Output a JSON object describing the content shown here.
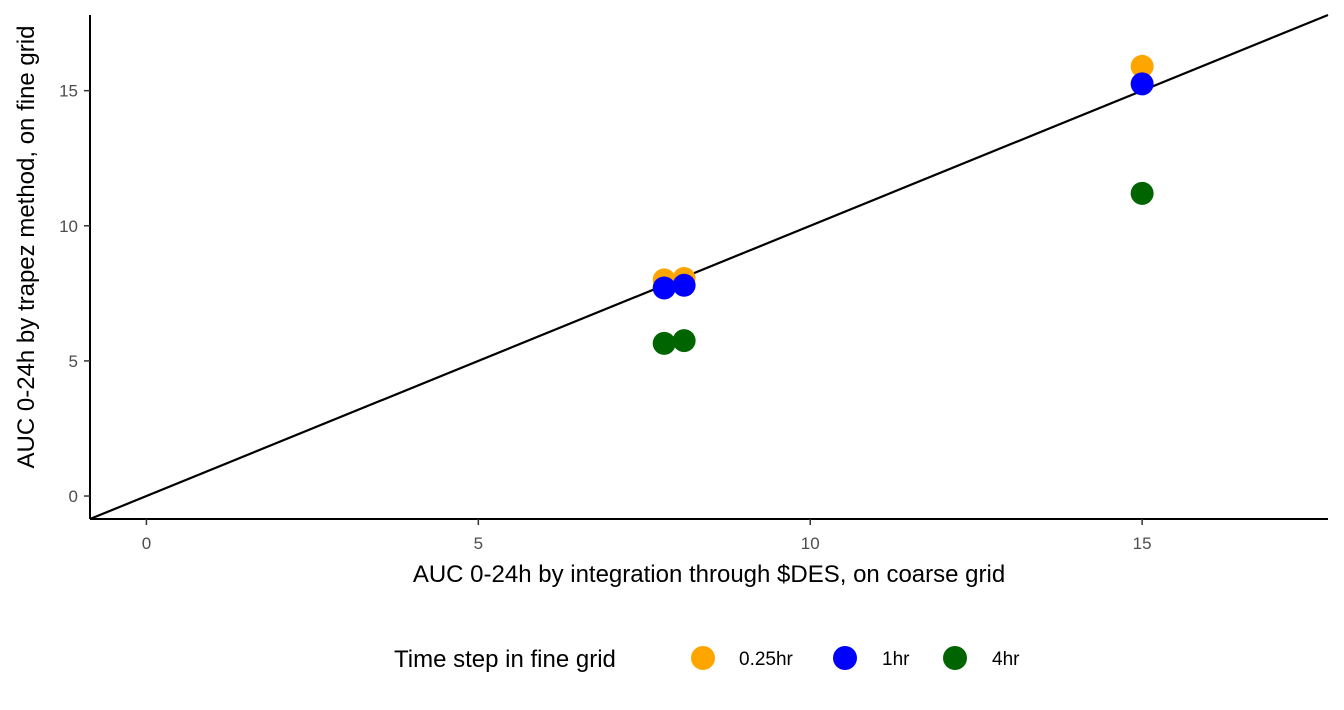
{
  "chart_data": {
    "type": "scatter",
    "xlabel": "AUC 0-24h by integration through $DES, on coarse grid",
    "ylabel": "AUC 0-24h by trapez method, on fine grid",
    "xlim": [
      -0.85,
      17.8
    ],
    "ylim": [
      -0.85,
      17.8
    ],
    "x_ticks": [
      0,
      5,
      10,
      15
    ],
    "y_ticks": [
      0,
      5,
      10,
      15
    ],
    "grid": false,
    "reference_line": {
      "slope": 1,
      "intercept": 0,
      "color": "#000000"
    },
    "legend": {
      "title": "Time step in fine grid",
      "position": "bottom"
    },
    "series": [
      {
        "name": "0.25hr",
        "color": "#FFA500",
        "points": [
          {
            "x": 7.8,
            "y": 8.0
          },
          {
            "x": 8.1,
            "y": 8.05
          },
          {
            "x": 15.0,
            "y": 15.9
          }
        ]
      },
      {
        "name": "1hr",
        "color": "#0000FF",
        "points": [
          {
            "x": 7.8,
            "y": 7.7
          },
          {
            "x": 8.1,
            "y": 7.8
          },
          {
            "x": 15.0,
            "y": 15.25
          }
        ]
      },
      {
        "name": "4hr",
        "color": "#006400",
        "points": [
          {
            "x": 7.8,
            "y": 5.65
          },
          {
            "x": 8.1,
            "y": 5.75
          },
          {
            "x": 15.0,
            "y": 11.2
          }
        ]
      }
    ]
  }
}
